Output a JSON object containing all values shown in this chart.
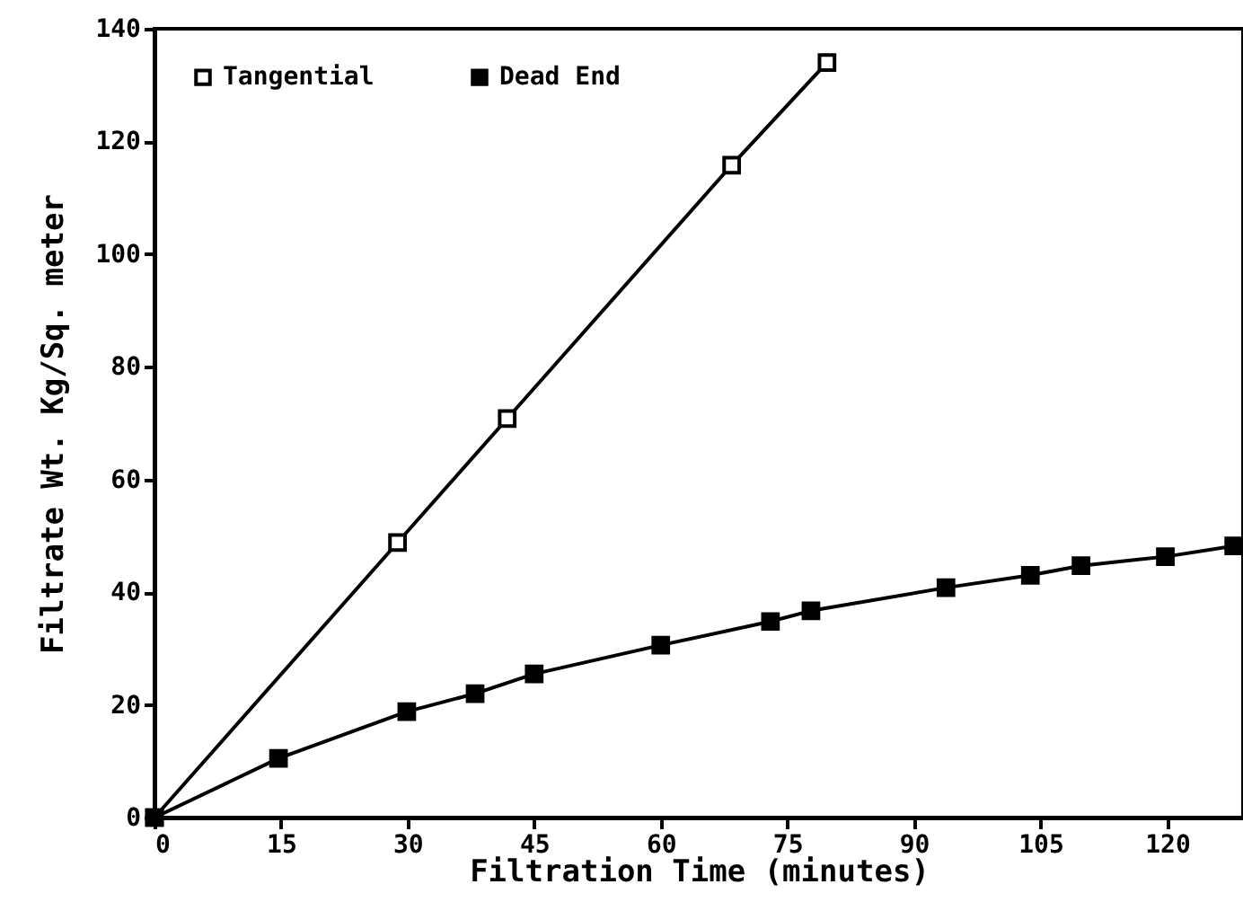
{
  "chart_data": {
    "type": "line",
    "xlabel": "Filtration Time  (minutes)",
    "ylabel": "Filtrate Wt. Kg/Sq. meter",
    "xlim": [
      0,
      129
    ],
    "xticks": [
      0,
      15,
      30,
      45,
      60,
      75,
      90,
      105,
      120
    ],
    "ylim": [
      0,
      140
    ],
    "yticks": [
      0,
      20,
      40,
      60,
      80,
      100,
      120,
      140
    ],
    "marker": "square",
    "line_style": "solid",
    "grid": false,
    "legend": "top left",
    "series": [
      {
        "name": "Tangential",
        "color": "#000000",
        "x": [
          0,
          28.8,
          41.8,
          68.4,
          79.7
        ],
        "values": [
          0,
          48.8,
          70.8,
          115.8,
          134
        ]
      },
      {
        "name": "Dead End",
        "color": "#000000",
        "x": [
          0,
          14.7,
          29.9,
          38,
          45,
          60,
          73,
          77.8,
          93.8,
          103.8,
          109.8,
          119.8,
          127.9
        ],
        "values": [
          0,
          10.5,
          18.8,
          22,
          25.5,
          30.6,
          34.8,
          36.7,
          40.8,
          43,
          44.7,
          46.3,
          48.2
        ]
      }
    ]
  }
}
